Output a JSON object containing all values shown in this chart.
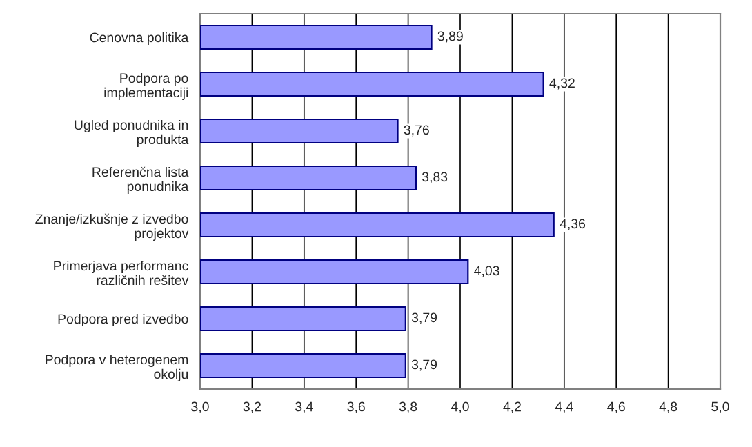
{
  "chart_data": {
    "type": "bar",
    "orientation": "horizontal",
    "categories": [
      "Cenovna politika",
      "Podpora po\nimplementaciji",
      "Ugled ponudnika in\nprodukta",
      "Referenčna lista\nponudnika",
      "Znanje/izkušnje z izvedbo\nprojektov",
      "Primerjava performanc\nrazličnih rešitev",
      "Podpora pred izvedbo",
      "Podpora v heterogenem\nokolju"
    ],
    "values": [
      3.89,
      4.32,
      3.76,
      3.83,
      4.36,
      4.03,
      3.79,
      3.79
    ],
    "value_labels": [
      "3,89",
      "4,32",
      "3,76",
      "3,83",
      "4,36",
      "4,03",
      "3,79",
      "3,79"
    ],
    "color": "#9999ff",
    "xlim": [
      3.0,
      5.0
    ],
    "xticks": [
      {
        "value": 3.0,
        "label": "3,0"
      },
      {
        "value": 3.2,
        "label": "3,2"
      },
      {
        "value": 3.4,
        "label": "3,4"
      },
      {
        "value": 3.6,
        "label": "3,6"
      },
      {
        "value": 3.8,
        "label": "3,8"
      },
      {
        "value": 4.0,
        "label": "4,0"
      },
      {
        "value": 4.2,
        "label": "4,2"
      },
      {
        "value": 4.4,
        "label": "4,4"
      },
      {
        "value": 4.6,
        "label": "4,6"
      },
      {
        "value": 4.8,
        "label": "4,8"
      },
      {
        "value": 5.0,
        "label": "5,0"
      }
    ],
    "grid": "x"
  }
}
